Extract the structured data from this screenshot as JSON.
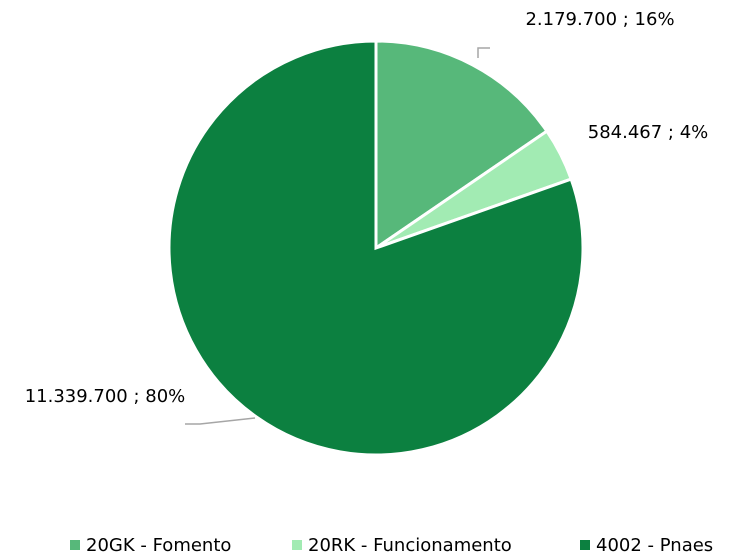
{
  "chart_data": {
    "type": "pie",
    "categories": [
      "20GK - Fomento",
      "20RK - Funcionamento",
      "4002 - Pnaes"
    ],
    "values": [
      2179700,
      584467,
      11339700
    ],
    "value_labels": [
      "2.179.700 ; 16%",
      "584.467 ; 4%",
      "11.339.700 ; 80%"
    ],
    "colors": [
      "#57b87a",
      "#a2ebb3",
      "#0c8040"
    ],
    "legend": "bottom"
  }
}
